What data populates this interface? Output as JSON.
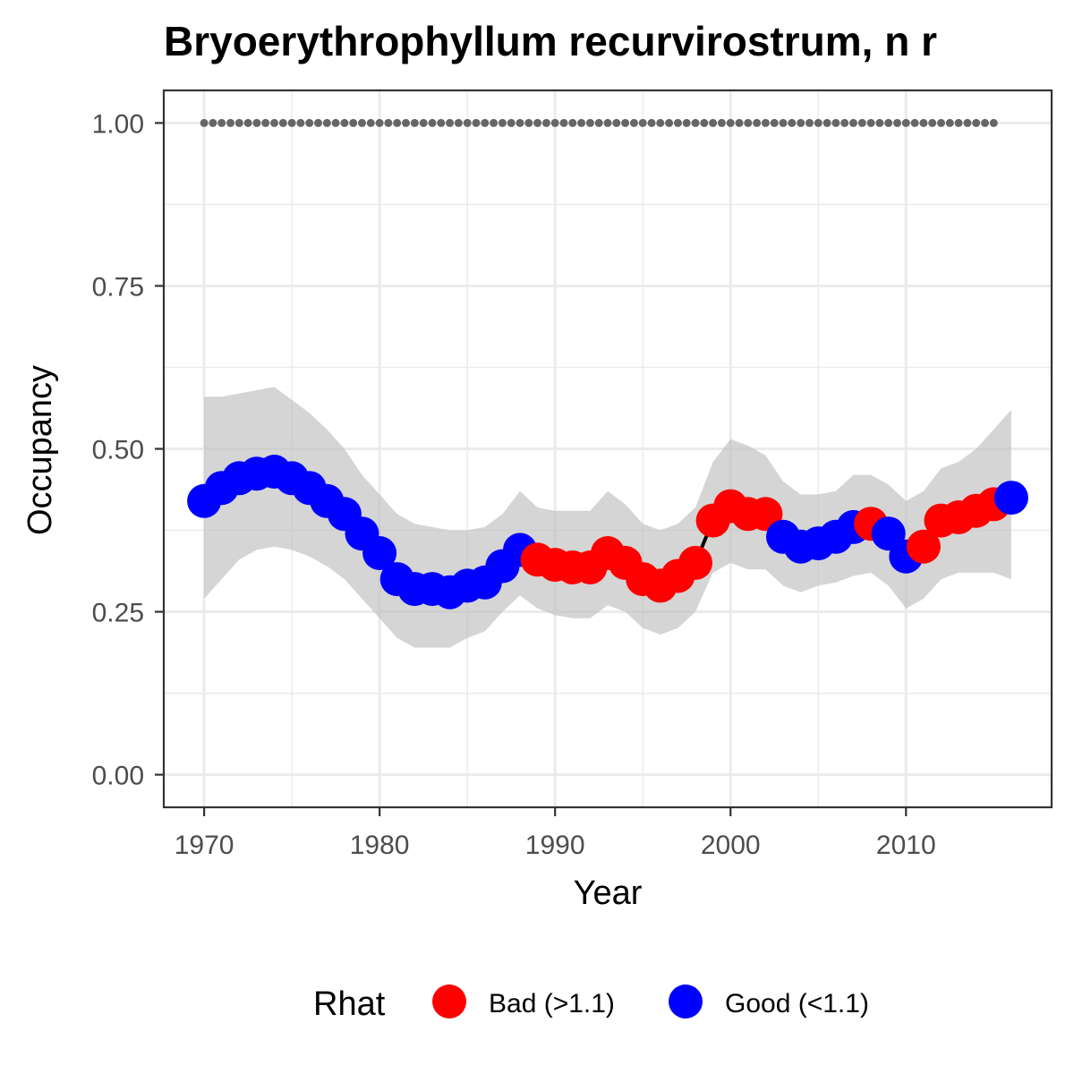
{
  "chart_data": {
    "type": "line",
    "title": "Bryoerythrophyllum recurvirostrum, n r",
    "xlabel": "Year",
    "ylabel": "Occupancy",
    "xlim": [
      1967.7,
      2018.3
    ],
    "ylim": [
      -0.05,
      1.05
    ],
    "xticks": [
      1970,
      1980,
      1990,
      2000,
      2010
    ],
    "yticks": [
      0.0,
      0.25,
      0.5,
      0.75,
      1.0
    ],
    "ytick_labels": [
      "0.00",
      "0.25",
      "0.50",
      "0.75",
      "1.00"
    ],
    "grid": true,
    "legend": {
      "title": "Rhat",
      "position": "bottom",
      "entries": [
        {
          "key": "bad",
          "label": "Bad (>1.1)",
          "color": "#ff0000"
        },
        {
          "key": "good",
          "label": "Good (<1.1)",
          "color": "#0000ff"
        }
      ]
    },
    "reference_line": {
      "y": 1.0,
      "x_start": 1970,
      "x_end": 2015,
      "style": "dotted",
      "color": "#666666"
    },
    "ribbon_color": "#bfbfbf",
    "series": [
      {
        "x": [
          1970,
          1971,
          1972,
          1973,
          1974,
          1975,
          1976,
          1977,
          1978,
          1979,
          1980,
          1981,
          1982,
          1983,
          1984,
          1985,
          1986,
          1987,
          1988,
          1989,
          1990,
          1991,
          1992,
          1993,
          1994,
          1995,
          1996,
          1997,
          1998,
          1999,
          2000,
          2001,
          2002,
          2003,
          2004,
          2005,
          2006,
          2007,
          2008,
          2009,
          2010,
          2011,
          2012,
          2013,
          2014,
          2015,
          2016
        ],
        "y": [
          0.42,
          0.44,
          0.455,
          0.462,
          0.465,
          0.455,
          0.44,
          0.42,
          0.4,
          0.37,
          0.34,
          0.3,
          0.285,
          0.285,
          0.28,
          0.29,
          0.295,
          0.32,
          0.345,
          0.33,
          0.322,
          0.318,
          0.318,
          0.34,
          0.325,
          0.3,
          0.29,
          0.305,
          0.325,
          0.39,
          0.412,
          0.4,
          0.4,
          0.365,
          0.35,
          0.355,
          0.365,
          0.38,
          0.385,
          0.37,
          0.335,
          0.35,
          0.39,
          0.395,
          0.405,
          0.415,
          0.425
        ],
        "lower": [
          0.27,
          0.3,
          0.33,
          0.345,
          0.35,
          0.345,
          0.335,
          0.32,
          0.3,
          0.27,
          0.24,
          0.21,
          0.195,
          0.195,
          0.195,
          0.21,
          0.22,
          0.25,
          0.275,
          0.255,
          0.245,
          0.24,
          0.24,
          0.26,
          0.25,
          0.225,
          0.215,
          0.225,
          0.25,
          0.31,
          0.325,
          0.315,
          0.315,
          0.29,
          0.28,
          0.29,
          0.295,
          0.305,
          0.31,
          0.29,
          0.255,
          0.27,
          0.3,
          0.31,
          0.31,
          0.31,
          0.3
        ],
        "upper": [
          0.58,
          0.58,
          0.585,
          0.59,
          0.595,
          0.575,
          0.555,
          0.53,
          0.5,
          0.46,
          0.43,
          0.4,
          0.385,
          0.38,
          0.375,
          0.375,
          0.38,
          0.4,
          0.435,
          0.41,
          0.405,
          0.405,
          0.405,
          0.435,
          0.415,
          0.385,
          0.375,
          0.385,
          0.41,
          0.48,
          0.515,
          0.505,
          0.49,
          0.45,
          0.43,
          0.43,
          0.435,
          0.46,
          0.46,
          0.445,
          0.42,
          0.435,
          0.47,
          0.48,
          0.5,
          0.53,
          0.56
        ],
        "rhat": [
          "good",
          "good",
          "good",
          "good",
          "good",
          "good",
          "good",
          "good",
          "good",
          "good",
          "good",
          "good",
          "good",
          "good",
          "good",
          "good",
          "good",
          "good",
          "good",
          "bad",
          "bad",
          "bad",
          "bad",
          "bad",
          "bad",
          "bad",
          "bad",
          "bad",
          "bad",
          "bad",
          "bad",
          "bad",
          "bad",
          "good",
          "good",
          "good",
          "good",
          "good",
          "bad",
          "good",
          "good",
          "bad",
          "bad",
          "bad",
          "bad",
          "bad",
          "good"
        ]
      }
    ]
  }
}
